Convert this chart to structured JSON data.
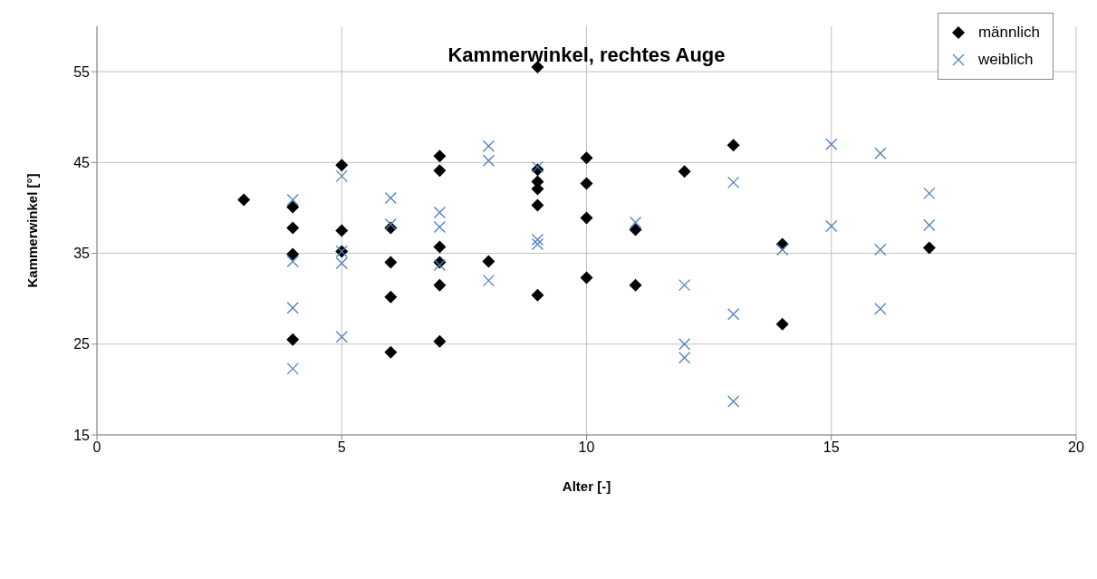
{
  "chart_data": {
    "type": "scatter",
    "title": "Kammerwinkel, rechtes Auge",
    "xlabel": "Alter [-]",
    "ylabel": "Kammerwinkel [°]",
    "xlim": [
      0,
      20
    ],
    "xticks": [
      0,
      5,
      10,
      15,
      20
    ],
    "ylim": [
      15,
      60
    ],
    "yticks": [
      15,
      25,
      35,
      45,
      55
    ],
    "grid": true,
    "legend": "top right",
    "series": [
      {
        "name": "männlich",
        "color": "#000000",
        "marker": "diamond",
        "x": [
          3,
          4,
          4,
          4,
          4,
          5,
          5,
          5,
          6,
          6,
          6,
          6,
          7,
          7,
          7,
          7,
          7,
          7,
          8,
          9,
          9,
          9,
          9,
          9,
          9,
          10,
          10,
          10,
          10,
          11,
          11,
          12,
          13,
          14,
          14,
          17
        ],
        "values": [
          40.9,
          40.1,
          37.8,
          34.9,
          25.5,
          44.7,
          37.5,
          35.2,
          37.8,
          34.0,
          30.2,
          24.1,
          45.7,
          44.1,
          35.7,
          34.0,
          31.5,
          25.3,
          34.1,
          55.5,
          44.2,
          42.9,
          42.1,
          40.3,
          30.4,
          45.5,
          42.7,
          38.9,
          32.3,
          37.6,
          31.5,
          44.0,
          46.9,
          36.0,
          27.2,
          35.6
        ]
      },
      {
        "name": "weiblich",
        "color": "#4f81bd",
        "marker": "cross",
        "x": [
          4,
          4,
          4,
          4,
          5,
          5,
          5,
          5,
          6,
          6,
          7,
          7,
          7,
          8,
          8,
          8,
          9,
          9,
          9,
          11,
          12,
          12,
          12,
          13,
          13,
          13,
          14,
          15,
          15,
          16,
          16,
          16,
          17,
          17
        ],
        "values": [
          40.9,
          34.1,
          29.0,
          22.3,
          43.5,
          35.2,
          33.9,
          25.8,
          41.1,
          38.2,
          39.5,
          37.9,
          33.7,
          46.8,
          45.2,
          32.0,
          44.5,
          36.5,
          36.0,
          38.4,
          31.5,
          25.0,
          23.5,
          42.8,
          28.3,
          18.7,
          35.4,
          47.0,
          38.0,
          46.0,
          35.4,
          28.9,
          41.6,
          38.1
        ]
      }
    ]
  }
}
